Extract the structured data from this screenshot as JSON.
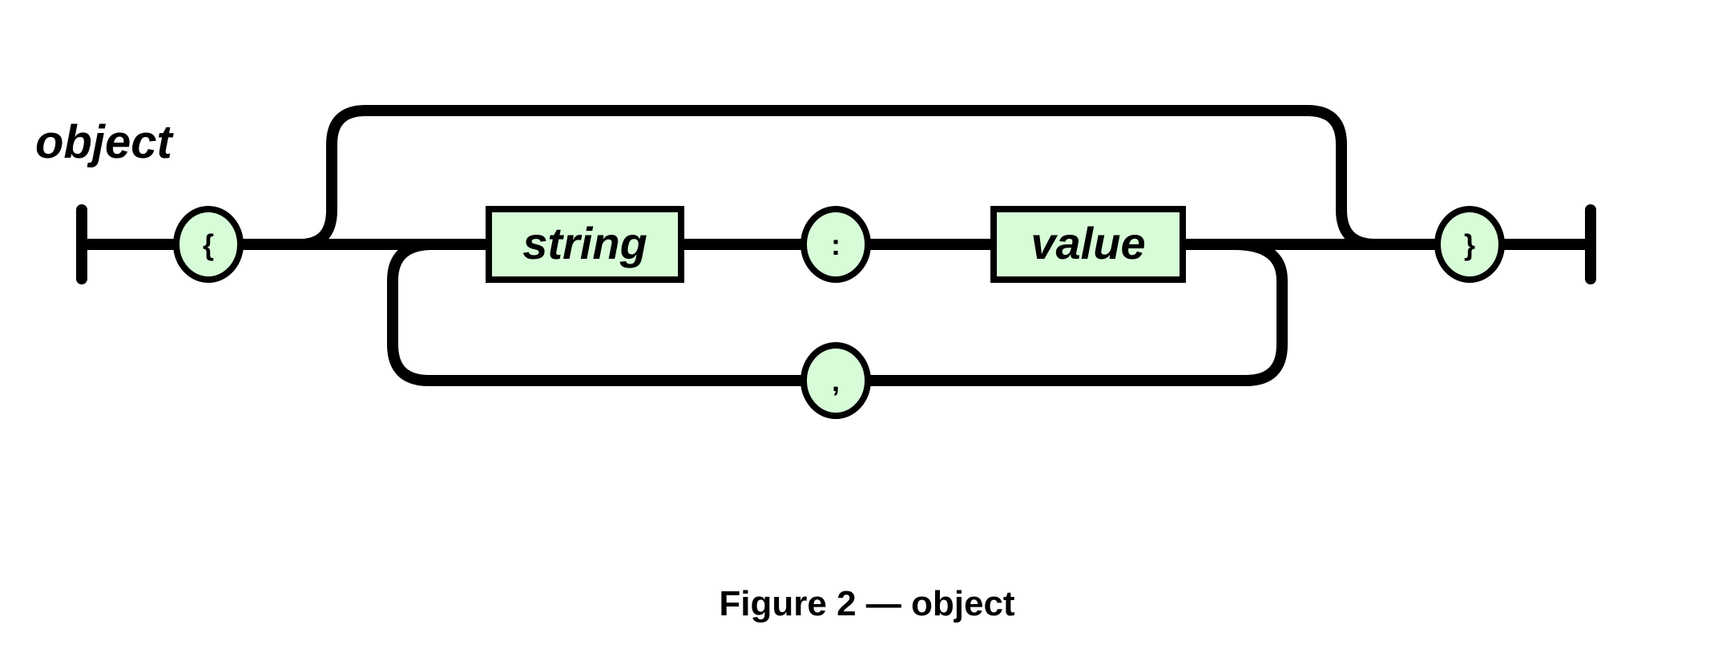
{
  "diagram": {
    "rule_name": "object",
    "caption": "Figure 2 — object",
    "colors": {
      "track": "#000000",
      "node_fill": "#d8fcd8",
      "text": "#000000",
      "background": "#ffffff"
    },
    "terminals": {
      "open_brace": "{",
      "colon": ":",
      "comma": ",",
      "close_brace": "}"
    },
    "nonterminals": {
      "string": "string",
      "value": "value"
    }
  }
}
